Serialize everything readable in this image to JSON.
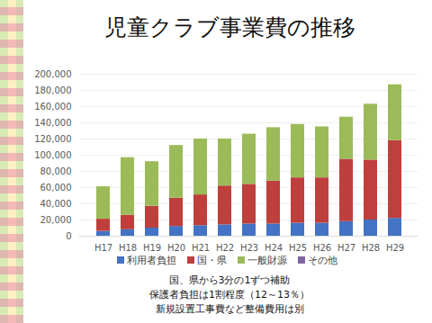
{
  "chart_data": {
    "type": "bar",
    "title": "児童クラブ事業費の推移",
    "stacked": true,
    "grid": true,
    "legend": "bottom",
    "categories": [
      "H17",
      "H18",
      "H19",
      "H20",
      "H21",
      "H22",
      "H23",
      "H24",
      "H25",
      "H26",
      "H27",
      "H28",
      "H29"
    ],
    "series": [
      {
        "name": "利用者負担",
        "color": "#4472c4",
        "values": [
          6000,
          8000,
          10000,
          12000,
          13000,
          14000,
          15000,
          15000,
          16000,
          16000,
          18000,
          20000,
          22000
        ]
      },
      {
        "name": "国・県",
        "color": "#be3f3c",
        "values": [
          15000,
          18000,
          27000,
          35000,
          38000,
          48000,
          49000,
          53000,
          56000,
          56000,
          77000,
          74000,
          96000
        ]
      },
      {
        "name": "一般財源",
        "color": "#9bbb59",
        "values": [
          40000,
          71000,
          55000,
          65000,
          69000,
          58000,
          62000,
          66000,
          66000,
          63000,
          52000,
          69000,
          69000
        ]
      },
      {
        "name": "その他",
        "color": "#8064a2",
        "values": [
          0,
          0,
          0,
          0,
          0,
          0,
          0,
          0,
          0,
          0,
          0,
          0,
          0
        ]
      }
    ],
    "ylim": [
      0,
      200000
    ],
    "yticks": [
      0,
      {
        "value": 20000,
        "label": "20,000"
      },
      {
        "value": 40000,
        "label": "40,000"
      },
      {
        "value": 60000,
        "label": "60,000"
      },
      {
        "value": 80000,
        "label": "80,000"
      },
      {
        "value": 100000,
        "label": "100,000"
      },
      {
        "value": 120000,
        "label": "120,000"
      },
      {
        "value": 140000,
        "label": "140,000"
      },
      {
        "value": 160000,
        "label": "160,000"
      },
      {
        "value": 180000,
        "label": "180,000"
      },
      {
        "value": 200000,
        "label": "200,000"
      }
    ],
    "annotations": [
      "国、県から3分の1ずつ補助",
      "保護者負担は1割程度（12～13％）",
      "新規設置工事費など整備費用は別"
    ]
  }
}
